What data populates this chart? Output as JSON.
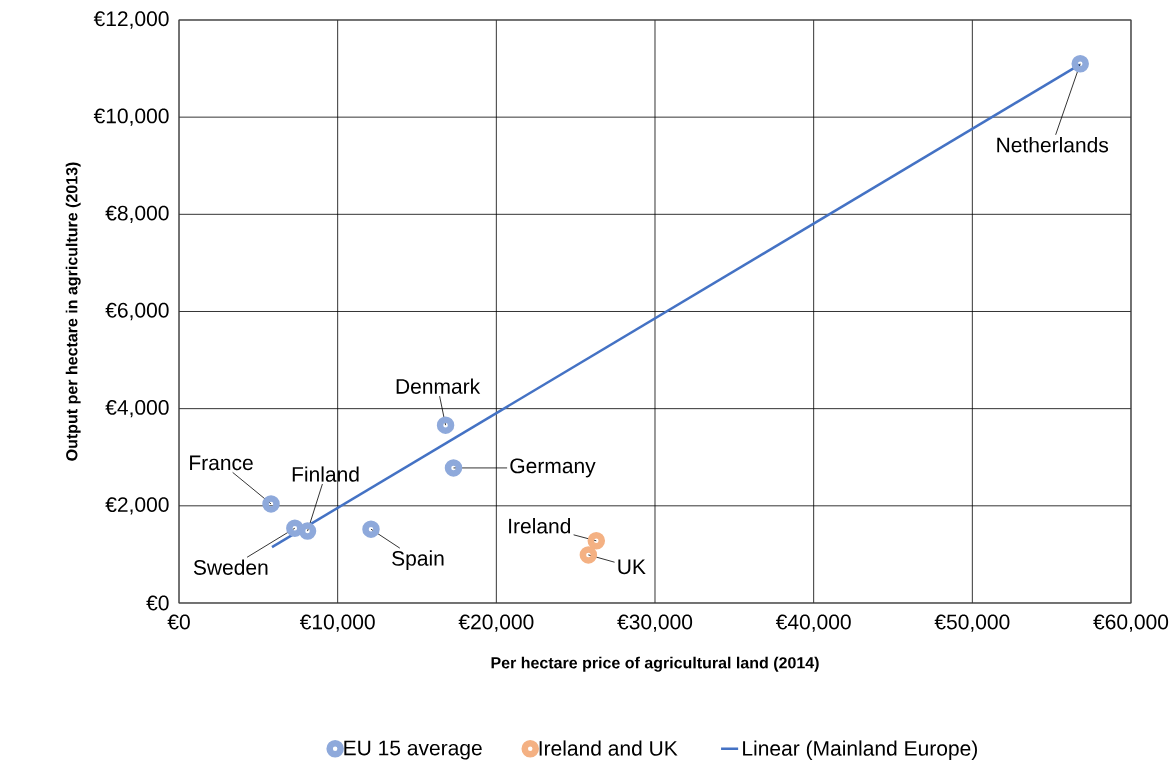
{
  "chart_data": {
    "type": "scatter",
    "xlabel": "Per hectare price of agricultural land (2014)",
    "ylabel": "Output per hectare in agriculture (2013)",
    "xlim": [
      0,
      60000
    ],
    "ylim": [
      0,
      12000
    ],
    "xticks": [
      {
        "value": 0,
        "label": "€0"
      },
      {
        "value": 10000,
        "label": "€10,000"
      },
      {
        "value": 20000,
        "label": "€20,000"
      },
      {
        "value": 30000,
        "label": "€30,000"
      },
      {
        "value": 40000,
        "label": "€40,000"
      },
      {
        "value": 50000,
        "label": "€50,000"
      },
      {
        "value": 60000,
        "label": "€60,000"
      }
    ],
    "yticks": [
      {
        "value": 0,
        "label": "€0"
      },
      {
        "value": 2000,
        "label": "€2,000"
      },
      {
        "value": 4000,
        "label": "€4,000"
      },
      {
        "value": 6000,
        "label": "€6,000"
      },
      {
        "value": 8000,
        "label": "€8,000"
      },
      {
        "value": 10000,
        "label": "€10,000"
      },
      {
        "value": 12000,
        "label": "€12,000"
      }
    ],
    "grid": true,
    "legend": "bottom",
    "series": [
      {
        "name": "EU 15 average",
        "marker": "circle",
        "color": "#8ea9db",
        "x": [
          56800,
          16800,
          17300,
          5800,
          7300,
          8100,
          12100
        ],
        "values": [
          11100,
          3660,
          2780,
          2040,
          1540,
          1480,
          1520
        ]
      },
      {
        "name": "Ireland and UK",
        "marker": "circle",
        "color": "#f4b183",
        "x": [
          26300,
          25800
        ],
        "values": [
          1280,
          990
        ]
      },
      {
        "name": "Linear (Mainland Europe)",
        "type": "line",
        "marker": "none",
        "line_style": "solid",
        "color": "#4472c4",
        "x": [
          5860,
          56770
        ],
        "values": [
          1150,
          11080
        ]
      }
    ],
    "annotations": [
      {
        "text": "Netherlands",
        "x": 56800,
        "y": 11100
      },
      {
        "text": "Denmark",
        "x": 16800,
        "y": 3660
      },
      {
        "text": "Germany",
        "x": 17300,
        "y": 2780
      },
      {
        "text": "France",
        "x": 5800,
        "y": 2040
      },
      {
        "text": "Sweden",
        "x": 7300,
        "y": 1540
      },
      {
        "text": "Finland",
        "x": 8100,
        "y": 1480
      },
      {
        "text": "Spain",
        "x": 12100,
        "y": 1520
      },
      {
        "text": "Ireland",
        "x": 26300,
        "y": 1280
      },
      {
        "text": "UK",
        "x": 25800,
        "y": 990
      }
    ]
  }
}
